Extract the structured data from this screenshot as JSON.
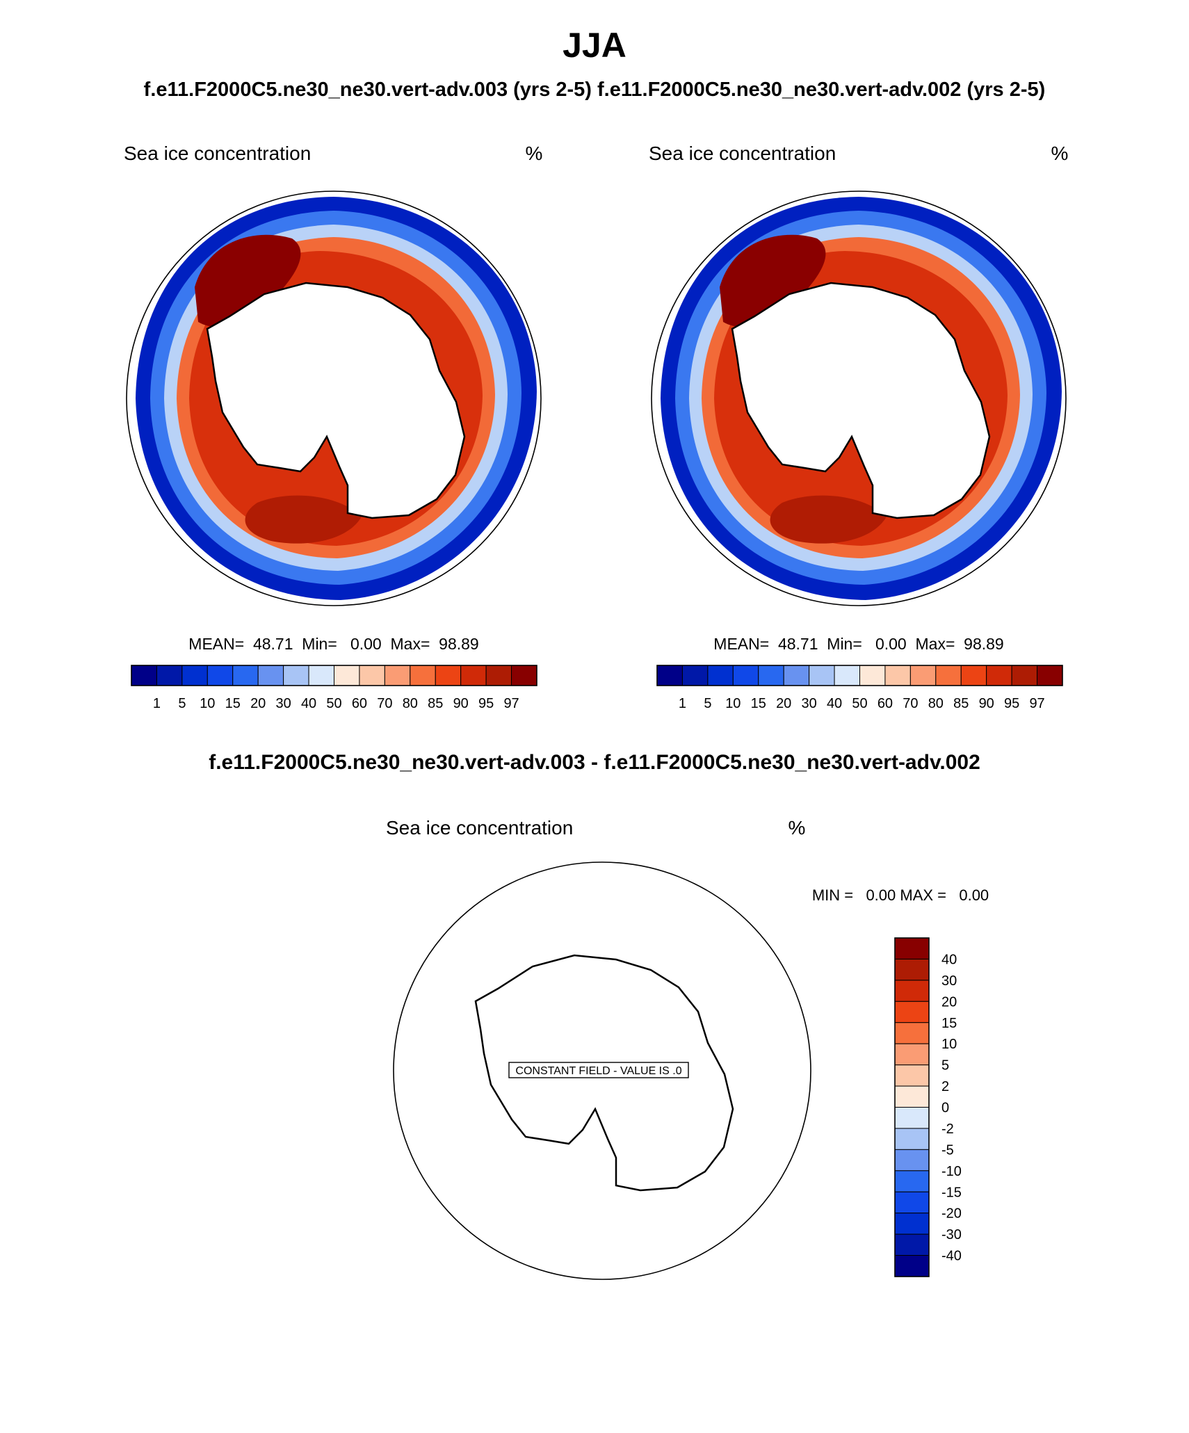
{
  "header": {
    "title": "JJA",
    "subtitle": "f.e11.F2000C5.ne30_ne30.vert-adv.003 (yrs 2-5) f.e11.F2000C5.ne30_ne30.vert-adv.002 (yrs 2-5)"
  },
  "panels": [
    {
      "variable": "Sea ice concentration",
      "units": "%",
      "stats": "MEAN=  48.71  Min=   0.00  Max=  98.89",
      "colorbar": {
        "levels": [
          "1",
          "5",
          "10",
          "15",
          "20",
          "30",
          "40",
          "50",
          "60",
          "70",
          "80",
          "85",
          "90",
          "95",
          "97"
        ],
        "colors": [
          "#000088",
          "#0018a8",
          "#0030d0",
          "#1048e8",
          "#2868f0",
          "#6892f0",
          "#a8c4f5",
          "#d9e8fb",
          "#fde8d8",
          "#fcc7a8",
          "#fa9c74",
          "#f6703c",
          "#ec4414",
          "#d02a08",
          "#ad1c04",
          "#880000"
        ]
      }
    },
    {
      "variable": "Sea ice concentration",
      "units": "%",
      "stats": "MEAN=  48.71  Min=   0.00  Max=  98.89",
      "colorbar": {
        "levels": [
          "1",
          "5",
          "10",
          "15",
          "20",
          "30",
          "40",
          "50",
          "60",
          "70",
          "80",
          "85",
          "90",
          "95",
          "97"
        ],
        "colors": [
          "#000088",
          "#0018a8",
          "#0030d0",
          "#1048e8",
          "#2868f0",
          "#6892f0",
          "#a8c4f5",
          "#d9e8fb",
          "#fde8d8",
          "#fcc7a8",
          "#fa9c74",
          "#f6703c",
          "#ec4414",
          "#d02a08",
          "#ad1c04",
          "#880000"
        ]
      }
    }
  ],
  "diff": {
    "title": "f.e11.F2000C5.ne30_ne30.vert-adv.003 - f.e11.F2000C5.ne30_ne30.vert-adv.002",
    "variable": "Sea ice concentration",
    "units": "%",
    "stats": "MIN =   0.00 MAX =   0.00",
    "constant_label": "CONSTANT FIELD - VALUE IS .0",
    "colorbar": {
      "levels": [
        "40",
        "30",
        "20",
        "15",
        "10",
        "5",
        "2",
        "0",
        "-2",
        "-5",
        "-10",
        "-15",
        "-20",
        "-30",
        "-40"
      ],
      "colors": [
        "#880000",
        "#ad1c04",
        "#d02a08",
        "#ec4414",
        "#f6703c",
        "#fa9c74",
        "#fcc7a8",
        "#fde8d8",
        "#d9e8fb",
        "#a8c4f5",
        "#6892f0",
        "#2868f0",
        "#1048e8",
        "#0030d0",
        "#0018a8",
        "#000088"
      ]
    }
  }
}
